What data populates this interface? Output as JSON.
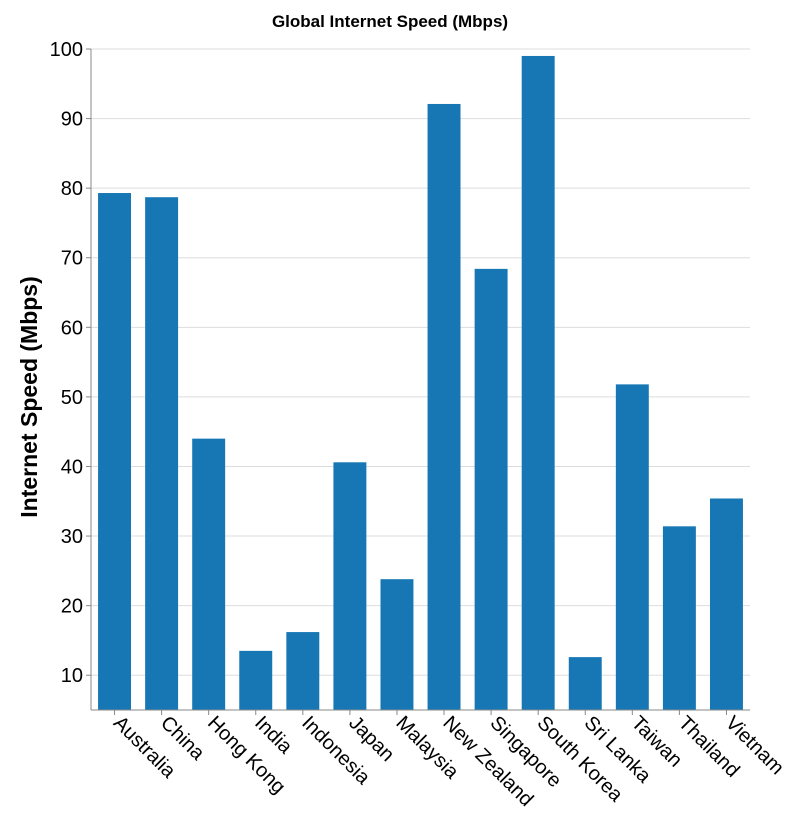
{
  "chart_data": {
    "type": "bar",
    "title": "Global Internet Speed (Mbps)",
    "xlabel": "",
    "ylabel": "Internet Speed (Mbps)",
    "categories": [
      "Australia",
      "China",
      "Hong Kong",
      "India",
      "Indonesia",
      "Japan",
      "Malaysia",
      "New Zealand",
      "Singapore",
      "South Korea",
      "Sri Lanka",
      "Taiwan",
      "Thailand",
      "Vietnam"
    ],
    "values": [
      79.3,
      78.7,
      44.0,
      13.5,
      16.2,
      40.6,
      23.8,
      92.1,
      68.4,
      99.0,
      12.6,
      51.8,
      31.4,
      35.4
    ],
    "ylim": [
      5,
      100
    ],
    "yticks": [
      10,
      20,
      30,
      40,
      50,
      60,
      70,
      80,
      90,
      100
    ],
    "bar_color": "#1677b4",
    "grid": true,
    "legend": "none"
  }
}
